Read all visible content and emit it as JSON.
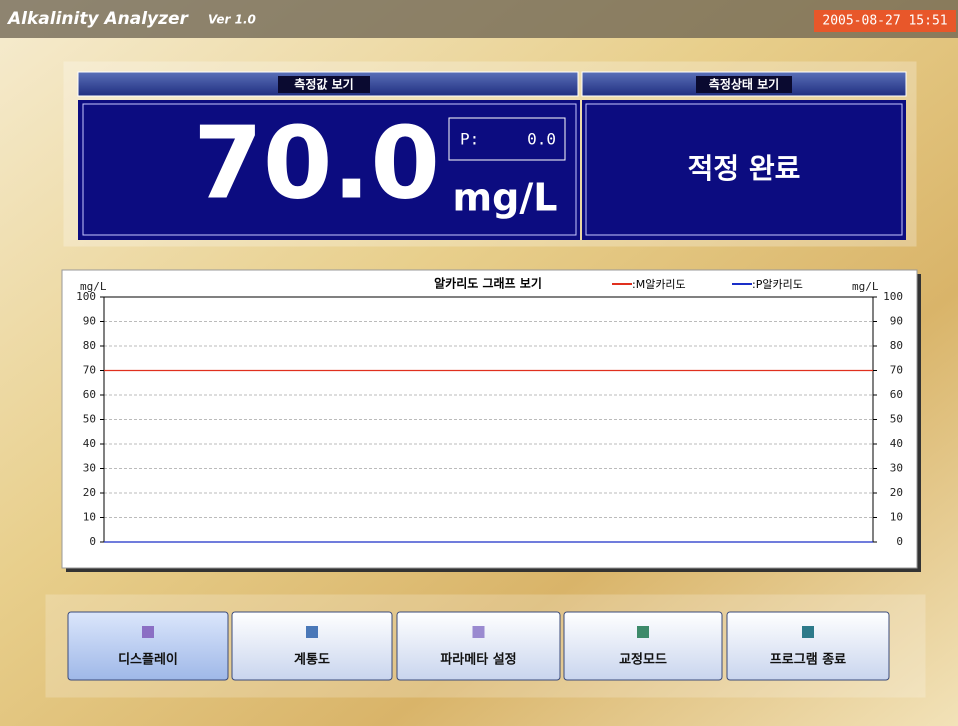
{
  "header": {
    "title": "Alkalinity Analyzer",
    "version": "Ver 1.0",
    "datetime": "2005-08-27 15:51"
  },
  "measurement": {
    "title": "측정값 보기",
    "value": "70.0",
    "unit": "mg/L",
    "p_label": "P:",
    "p_value": "0.0"
  },
  "status": {
    "title": "측정상태 보기",
    "text": "적정 완료"
  },
  "chart_data": {
    "type": "line",
    "title": "알카리도 그래프 보기",
    "y_label": "mg/L",
    "y2_label": "mg/L",
    "categories": [
      null,
      null
    ],
    "series": [
      {
        "name": ":M알카리도",
        "color": "#e0301e",
        "values": [
          70,
          70
        ]
      },
      {
        "name": ":P알카리도",
        "color": "#1a2fc8",
        "values": [
          0,
          0
        ]
      }
    ],
    "ylim": [
      0,
      100
    ],
    "yticks": [
      0,
      10,
      20,
      30,
      40,
      50,
      60,
      70,
      80,
      90,
      100
    ],
    "y2lim": [
      0,
      100
    ],
    "y2ticks": [
      0,
      10,
      20,
      30,
      40,
      50,
      60,
      70,
      80,
      90,
      100
    ],
    "grid": true
  },
  "buttons": [
    {
      "label": "디스플레이"
    },
    {
      "label": "계통도"
    },
    {
      "label": "파라메타 설정"
    },
    {
      "label": "교정모드"
    },
    {
      "label": "프로그램 종료"
    }
  ]
}
